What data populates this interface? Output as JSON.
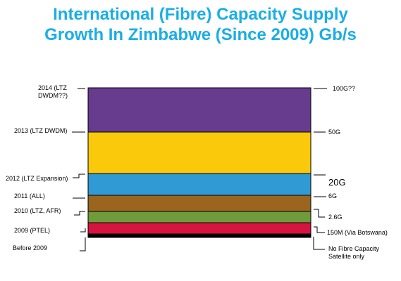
{
  "title": {
    "line1": "International (Fibre) Capacity Supply",
    "line2": "Growth In Zimbabwe (Since 2009) Gb/s"
  },
  "chart_data": {
    "type": "bar",
    "title": "International (Fibre) Capacity Supply Growth In Zimbabwe (Since 2009) Gb/s",
    "xlabel": "",
    "ylabel": "",
    "grid": false,
    "segments": [
      {
        "left_label": [
          "Before 2009"
        ],
        "right_label": [
          "No Fibre Capacity",
          "Satellite only"
        ],
        "color": "#000000"
      },
      {
        "left_label": [
          "2009 (PTEL)"
        ],
        "right_label": [
          "150M (Via Botswana)"
        ],
        "color": "#d6143f"
      },
      {
        "left_label": [
          "2010 (LTZ, AFR)"
        ],
        "right_label": [
          "2.6G"
        ],
        "color": "#6e9b3c"
      },
      {
        "left_label": [
          "2011 (ALL)"
        ],
        "right_label": [
          "6G"
        ],
        "color": "#99651f"
      },
      {
        "left_label": [
          "2012 (LTZ Expansion)"
        ],
        "right_label": [
          "20G"
        ],
        "color": "#2f9ad3"
      },
      {
        "left_label": [
          "2013 (LTZ DWDM)"
        ],
        "right_label": [
          "50G"
        ],
        "color": "#fbc90b"
      },
      {
        "left_label": [
          "2014 (LTZ",
          "DWDM??)"
        ],
        "right_label": [
          "100G??"
        ],
        "color": "#673b8d"
      }
    ]
  }
}
